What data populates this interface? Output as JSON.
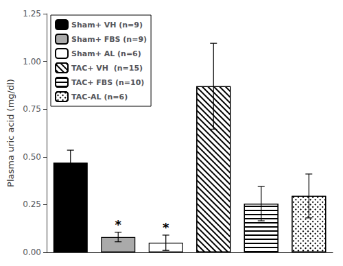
{
  "chart_data": {
    "type": "bar",
    "ylabel": "Plasma uric acid (mg/dl)",
    "series": [
      {
        "name": "Sham+ VH (n=9)",
        "color": "black",
        "values": [
          0.47
        ],
        "errors": [
          0.065
        ]
      },
      {
        "name": "Sham+ FBS (n=9)",
        "color": "#aaaaaa",
        "values": [
          0.08
        ],
        "errors": [
          0.025
        ]
      },
      {
        "name": "Sham+ AL (n=6)",
        "color": "white",
        "values": [
          0.05
        ],
        "errors": [
          0.04
        ]
      },
      {
        "name": "TAC+ VH  (n=15)",
        "color": "white",
        "values": [
          0.87
        ],
        "errors": [
          0.225
        ]
      },
      {
        "name": "TAC+ FBS (n=10)",
        "color": "white",
        "values": [
          0.255
        ],
        "errors": [
          0.09
        ]
      },
      {
        "name": "TAC-AL (n=6)",
        "color": "white",
        "values": [
          0.295
        ],
        "errors": [
          0.115
        ]
      }
    ],
    "annotations": [
      {
        "text": "*",
        "series": "Sham+ FBS (n=9)"
      },
      {
        "text": "*",
        "series": "Sham+ AL (n=6)"
      }
    ],
    "ylim": [
      0,
      1.25
    ],
    "yticks": [
      {
        "value": 0,
        "label": "0.00"
      },
      {
        "value": 0.25,
        "label": "0.25"
      },
      {
        "value": 0.5,
        "label": "0.50"
      },
      {
        "value": 0.75,
        "label": "0.75"
      },
      {
        "value": 1,
        "label": "1.00"
      },
      {
        "value": 1.25,
        "label": "1.25"
      }
    ],
    "grid": false,
    "legend": "upper left",
    "tick_labels": "y"
  }
}
